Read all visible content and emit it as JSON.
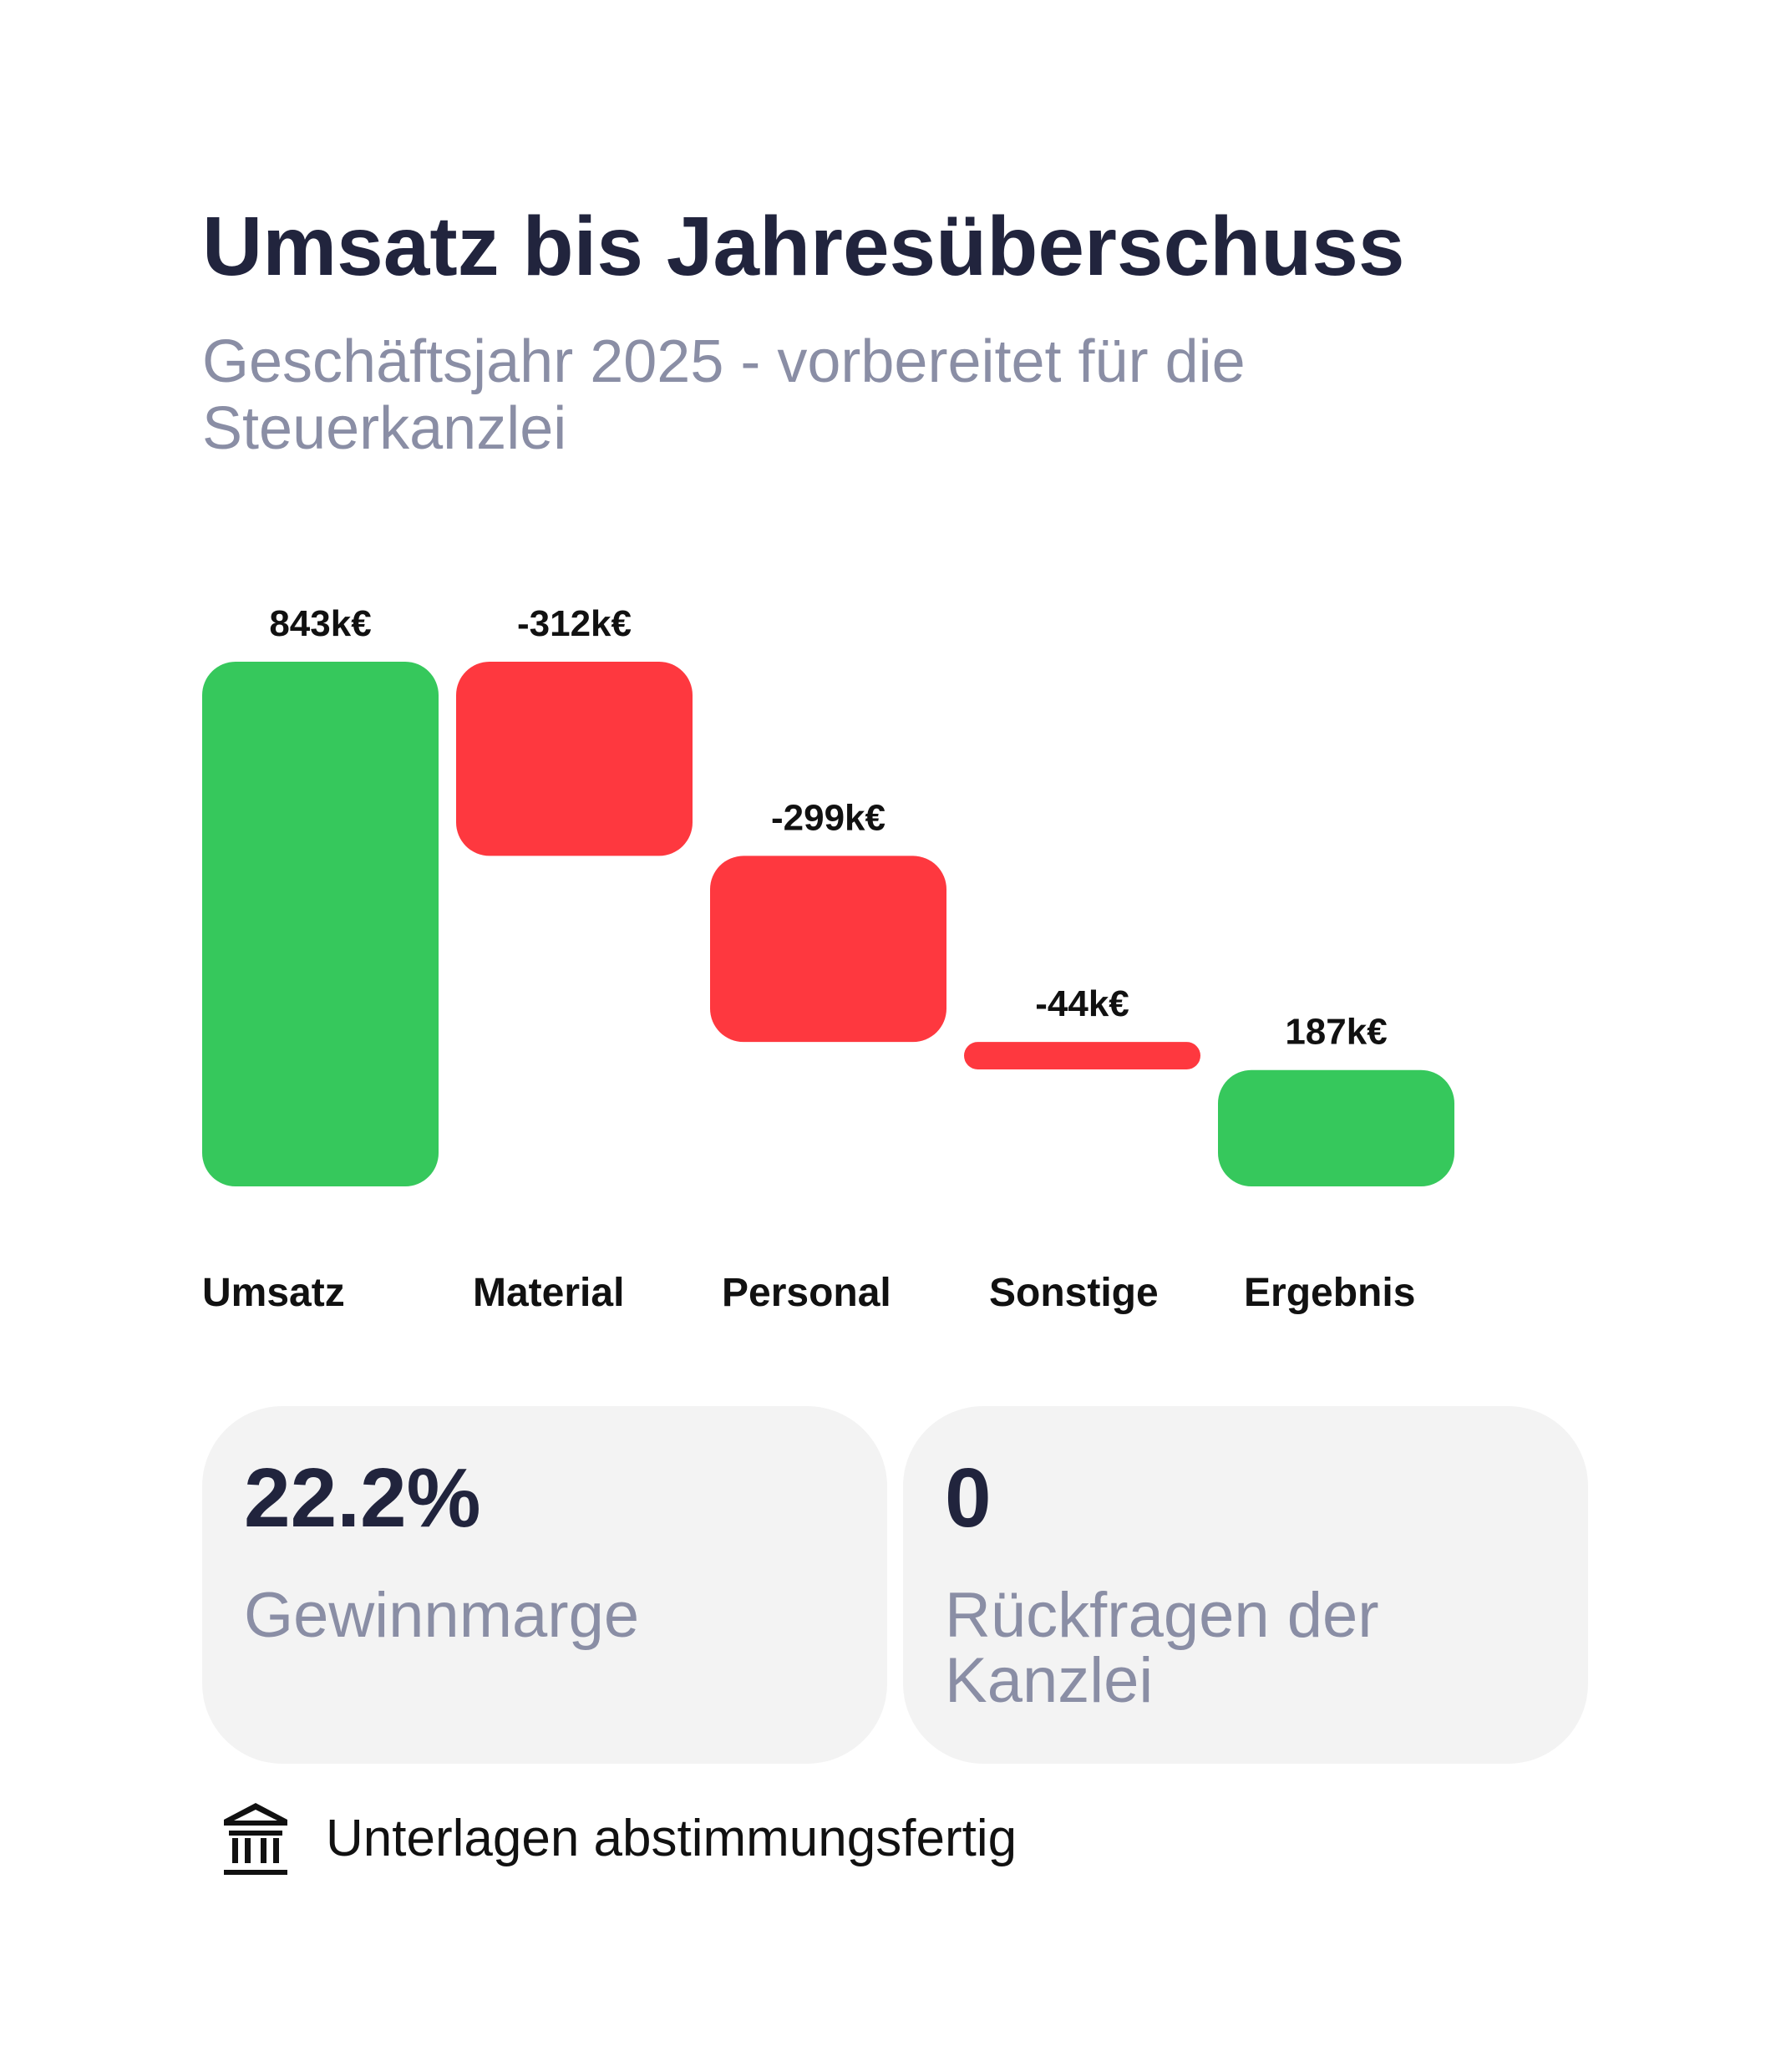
{
  "header": {
    "title": "Umsatz bis Jahresüberschuss",
    "subtitle": "Geschäftsjahr 2025 - vorbereitet für die Steuerkanzlei"
  },
  "chart_data": {
    "type": "bar",
    "variant": "waterfall",
    "title": "Umsatz bis Jahresüberschuss",
    "subtitle": "Geschäftsjahr 2025 - vorbereitet für die Steuerkanzlei",
    "unit": "k€",
    "categories": [
      "Umsatz",
      "Material",
      "Personal",
      "Sonstige",
      "Ergebnis"
    ],
    "values": [
      843,
      -312,
      -299,
      -44,
      187
    ],
    "value_labels": [
      "843k€",
      "-312k€",
      "-299k€",
      "-44k€",
      "187k€"
    ],
    "bar_kinds": [
      "total",
      "delta",
      "delta",
      "delta",
      "total"
    ],
    "colors": {
      "positive": "#36c85c",
      "negative": "#fe383f"
    },
    "ylim": [
      0,
      843
    ],
    "grid": false,
    "legend": "none"
  },
  "kpis": [
    {
      "value": "22.2%",
      "label": "Gewinnmarge"
    },
    {
      "value": "0",
      "label": "Rückfragen der Kanzlei"
    }
  ],
  "status": {
    "icon": "bank-icon",
    "text": "Unterlagen abstimmungsfertig"
  }
}
